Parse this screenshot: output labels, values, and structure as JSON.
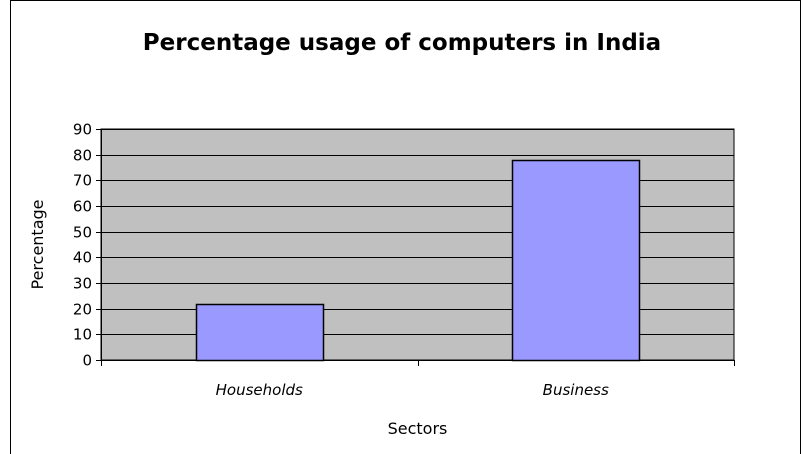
{
  "chart_data": {
    "type": "bar",
    "title": "Percentage usage of computers in India",
    "xlabel": "Sectors",
    "ylabel": "Percentage",
    "categories": [
      "Households",
      "Business"
    ],
    "values": [
      22,
      78
    ],
    "ylim": [
      0,
      90
    ],
    "yticks": [
      "0",
      "10",
      "20",
      "30",
      "40",
      "50",
      "60",
      "70",
      "80",
      "90"
    ],
    "grid": true,
    "legend": "none",
    "colors": {
      "bar_fill": "#9999ff",
      "plot_background": "#c0c0c0",
      "gridline": "#000000",
      "border": "#000000"
    }
  }
}
